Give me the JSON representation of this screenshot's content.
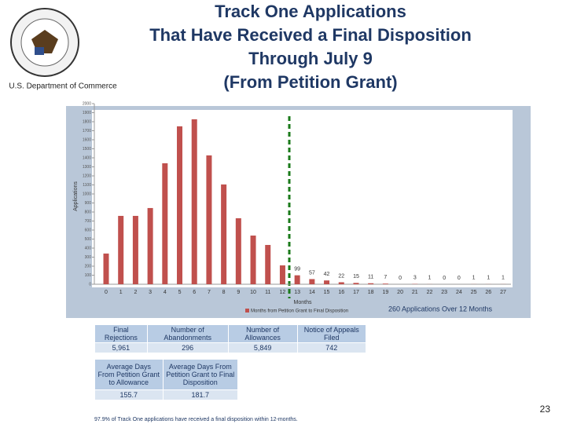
{
  "header": {
    "department": "U.S. Department of Commerce",
    "title_lines": [
      "Track One Applications",
      "That Have Received a Final Disposition",
      "Through July 9",
      "(From Petition Grant)"
    ]
  },
  "chart_data": {
    "type": "bar",
    "y_label": "Applications",
    "x_label": "Months",
    "legend": "Months from Petition Grant to Final Disposition",
    "annotation": "260 Applications Over 12 Months",
    "color": "#c0504d",
    "categories": [
      "0",
      "1",
      "2",
      "3",
      "4",
      "5",
      "6",
      "7",
      "8",
      "9",
      "10",
      "11",
      "12",
      "13",
      "14",
      "15",
      "16",
      "17",
      "18",
      "19",
      "20",
      "21",
      "22",
      "23",
      "24",
      "25",
      "26",
      "27"
    ],
    "values": [
      340,
      757,
      757,
      844,
      1340,
      1749,
      1827,
      1427,
      1105,
      731,
      539,
      435,
      209,
      99,
      57,
      42,
      22,
      15,
      11,
      7,
      0,
      3,
      1,
      0,
      0,
      1,
      1,
      1
    ],
    "labeled_from": 13,
    "ylim": [
      0,
      2000
    ],
    "yticks": [
      0,
      100,
      200,
      300,
      400,
      500,
      600,
      700,
      800,
      900,
      1000,
      1100,
      1200,
      1300,
      1400,
      1500,
      1600,
      1700,
      1800,
      1900,
      2000
    ]
  },
  "table1": {
    "headers": [
      "Final Rejections",
      "Number of Abandonments",
      "Number of Allowances",
      "Notice of Appeals Filed"
    ],
    "row": [
      "5,961",
      "296",
      "5,849",
      "742"
    ]
  },
  "table2": {
    "headers": [
      "Average Days From Petition Grant to Allowance",
      "Average Days From Petition Grant to Final Disposition"
    ],
    "row": [
      "155.7",
      "181.7"
    ]
  },
  "footnote": "97.9% of Track One applications have received a final disposition within 12-months.",
  "page_number": "23"
}
